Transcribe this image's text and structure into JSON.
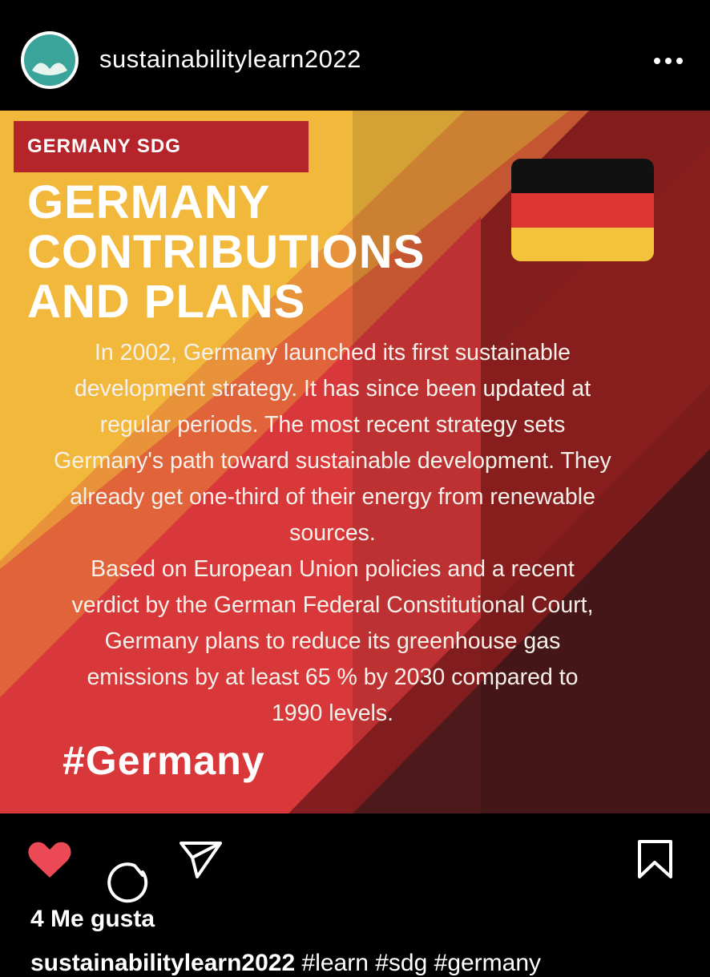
{
  "header": {
    "username": "sustainabilitylearn2022"
  },
  "post": {
    "badge": "GERMANY SDG",
    "title_lines": [
      "GERMANY",
      "CONTRIBUTIONS",
      "AND PLANS"
    ],
    "body_lines": [
      "In 2002, Germany launched its first sustainable",
      "development strategy. It has since been updated at",
      "regular periods. The most recent strategy sets",
      "Germany's path toward sustainable development. They",
      "already get one-third of their energy from renewable",
      "sources.",
      "Based on European Union policies and a recent",
      "verdict by the German Federal Constitutional Court,",
      "Germany plans to reduce its greenhouse gas",
      "emissions by at least 65 % by 2030 compared to",
      "1990 levels."
    ],
    "hashtag": "#Germany"
  },
  "footer": {
    "likes": "4 Me gusta",
    "caption_user": "sustainabilitylearn2022",
    "caption_text": "#learn #sdg #germany"
  }
}
